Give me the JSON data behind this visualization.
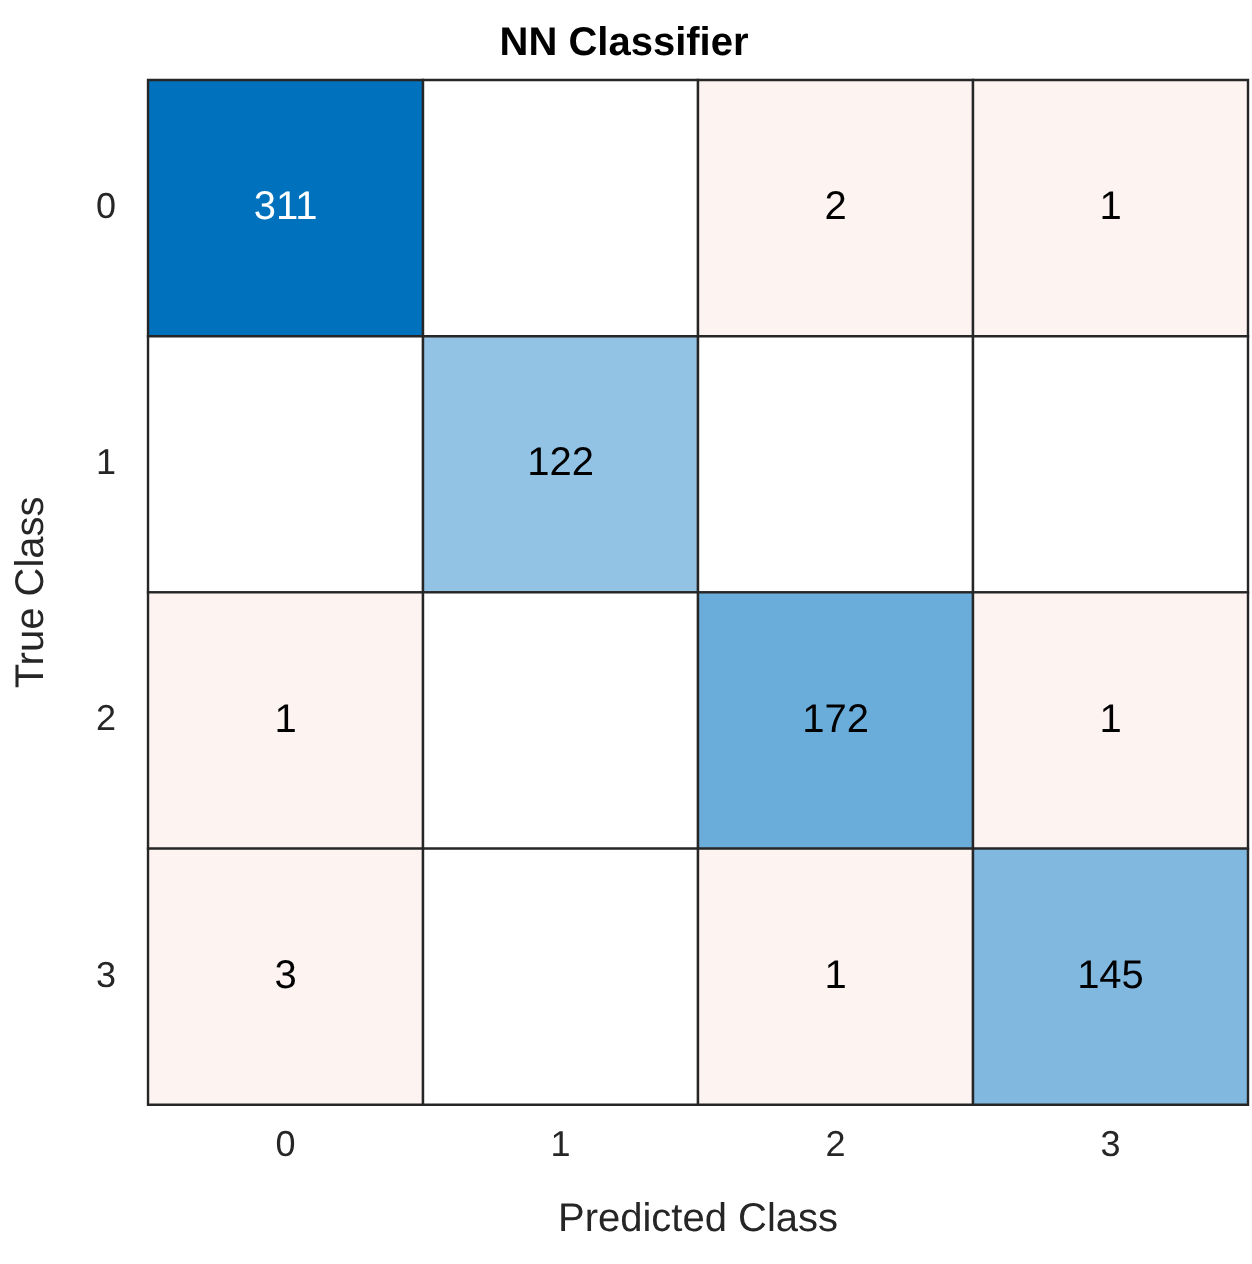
{
  "chart_data": {
    "type": "heatmap",
    "title": "NN Classifier",
    "xlabel": "Predicted Class",
    "ylabel": "True Class",
    "categories": [
      "0",
      "1",
      "2",
      "3"
    ],
    "y_categories": [
      "0",
      "1",
      "2",
      "3"
    ],
    "cells": [
      [
        311,
        null,
        2,
        1
      ],
      [
        null,
        122,
        null,
        null
      ],
      [
        1,
        null,
        172,
        1
      ],
      [
        3,
        null,
        1,
        145
      ]
    ],
    "colors": [
      [
        "#0072bd",
        null,
        "#fdf4f2",
        "#fdf4f2"
      ],
      [
        null,
        "#93c3e4",
        null,
        null
      ],
      [
        "#fdf4f2",
        null,
        "#6aaddb",
        "#fdf4f2"
      ],
      [
        "#fdf4f2",
        null,
        "#fdf4f2",
        "#80b8df"
      ]
    ],
    "data_labels": true,
    "legend": false
  }
}
